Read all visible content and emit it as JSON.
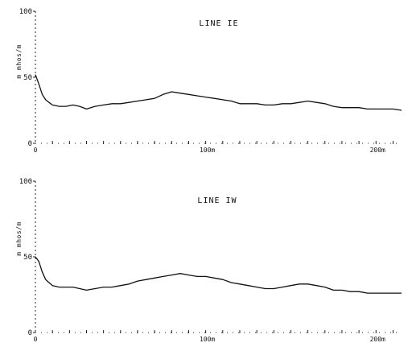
{
  "chart_data": [
    {
      "type": "line",
      "title": "LINE IE",
      "ylabel": "m mhos/m",
      "xlabel": "",
      "x_tick_labels": [
        {
          "x": 0,
          "label": "0"
        },
        {
          "x": 100,
          "label": "100m"
        },
        {
          "x": 200,
          "label": "200m"
        }
      ],
      "y_tick_labels": [
        {
          "y": 0,
          "label": "0"
        },
        {
          "y": 50,
          "label": "50"
        },
        {
          "y": 100,
          "label": "100"
        }
      ],
      "xlim": [
        0,
        215
      ],
      "ylim": [
        0,
        100
      ],
      "grid": false,
      "series": [
        {
          "x": [
            0,
            2,
            4,
            6,
            8,
            10,
            14,
            18,
            22,
            26,
            30,
            35,
            40,
            45,
            50,
            55,
            60,
            65,
            70,
            75,
            80,
            85,
            90,
            95,
            100,
            105,
            110,
            115,
            120,
            125,
            130,
            135,
            140,
            145,
            150,
            155,
            160,
            165,
            170,
            175,
            180,
            185,
            190,
            195,
            200,
            205,
            210,
            215
          ],
          "y": [
            52,
            45,
            37,
            33,
            31,
            29,
            28,
            28,
            29,
            28,
            26,
            28,
            29,
            30,
            30,
            31,
            32,
            33,
            34,
            37,
            39,
            38,
            37,
            36,
            35,
            34,
            33,
            32,
            30,
            30,
            30,
            29,
            29,
            30,
            30,
            31,
            32,
            31,
            30,
            28,
            27,
            27,
            27,
            26,
            26,
            26,
            26,
            25
          ]
        }
      ]
    },
    {
      "type": "line",
      "title": "LINE IW",
      "ylabel": "m mhos/m",
      "xlabel": "",
      "x_tick_labels": [
        {
          "x": 0,
          "label": "0"
        },
        {
          "x": 100,
          "label": "100m"
        },
        {
          "x": 200,
          "label": "200m"
        }
      ],
      "y_tick_labels": [
        {
          "y": 0,
          "label": "0"
        },
        {
          "y": 50,
          "label": "50"
        },
        {
          "y": 100,
          "label": "100"
        }
      ],
      "xlim": [
        0,
        215
      ],
      "ylim": [
        0,
        100
      ],
      "grid": false,
      "series": [
        {
          "x": [
            0,
            2,
            4,
            6,
            8,
            10,
            14,
            18,
            22,
            26,
            30,
            35,
            40,
            45,
            50,
            55,
            60,
            65,
            70,
            75,
            80,
            85,
            90,
            95,
            100,
            105,
            110,
            115,
            120,
            125,
            130,
            135,
            140,
            145,
            150,
            155,
            160,
            165,
            170,
            175,
            180,
            185,
            190,
            195,
            200,
            205,
            210,
            215
          ],
          "y": [
            50,
            47,
            40,
            35,
            33,
            31,
            30,
            30,
            30,
            29,
            28,
            29,
            30,
            30,
            31,
            32,
            34,
            35,
            36,
            37,
            38,
            39,
            38,
            37,
            37,
            36,
            35,
            33,
            32,
            31,
            30,
            29,
            29,
            30,
            31,
            32,
            32,
            31,
            30,
            28,
            28,
            27,
            27,
            26,
            26,
            26,
            26,
            26
          ]
        }
      ]
    }
  ]
}
